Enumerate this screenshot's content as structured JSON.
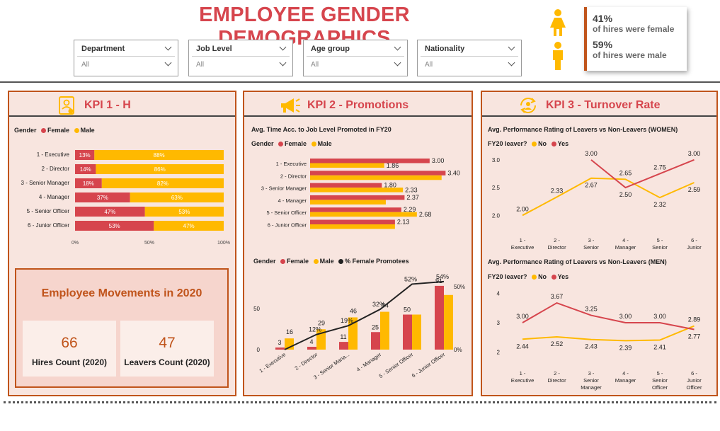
{
  "header": {
    "title": "EMPLOYEE GENDER DEMOGRAPHICS"
  },
  "filters": [
    {
      "label": "Department",
      "value": "All"
    },
    {
      "label": "Job Level",
      "value": "All"
    },
    {
      "label": "Age group",
      "value": "All"
    },
    {
      "label": "Nationality",
      "value": "All"
    }
  ],
  "hires": {
    "female_pct": "41%",
    "female_text": "of hires were female",
    "male_pct": "59%",
    "male_text": "of hires were male"
  },
  "colors": {
    "female": "#d6454d",
    "male": "#ffb900",
    "accent": "#c0541b",
    "panel_bg": "#f8e5df"
  },
  "kpi1": {
    "title": "KPI 1 - H",
    "legend": {
      "title": "Gender",
      "female": "Female",
      "male": "Male"
    },
    "x_ticks": [
      "0%",
      "50%",
      "100%"
    ]
  },
  "movements": {
    "title": "Employee Movements in 2020",
    "hires_value": "66",
    "hires_label": "Hires Count (2020)",
    "leavers_value": "47",
    "leavers_label": "Leavers Count (2020)"
  },
  "kpi2": {
    "title": "KPI 2 - Promotions",
    "chart1_title": "Avg. Time Acc. to Job Level Promoted in FY20",
    "legend1": {
      "title": "Gender",
      "female": "Female",
      "male": "Male"
    },
    "legend2": {
      "title": "Gender",
      "female": "Female",
      "male": "Male",
      "line": "% Female Promotees"
    },
    "chart2_left_ticks": [
      "0",
      "50"
    ],
    "chart2_right_ticks": [
      "0%",
      "50%"
    ]
  },
  "kpi3": {
    "title": "KPI 3 - Turnover Rate",
    "chart1_title": "Avg. Performance Rating of Leavers vs Non-Leavers (WOMEN)",
    "chart2_title": "Avg. Performance Rating of Leavers vs Non-Leavers (MEN)",
    "legend": {
      "title": "FY20 leaver?",
      "no": "No",
      "yes": "Yes"
    }
  },
  "chart_data": [
    {
      "type": "bar",
      "stacked": "100%",
      "orientation": "horizontal",
      "categories": [
        "1 - Executive",
        "2 - Director",
        "3 - Senior Manager",
        "4 - Manager",
        "5 - Senior Officer",
        "6 - Junior Officer"
      ],
      "series": [
        {
          "name": "Female",
          "values": [
            13,
            14,
            18,
            37,
            47,
            53
          ],
          "labels": [
            "13%",
            "14%",
            "18%",
            "37%",
            "47%",
            "53%"
          ]
        },
        {
          "name": "Male",
          "values": [
            88,
            86,
            82,
            63,
            53,
            47
          ],
          "labels": [
            "88%",
            "86%",
            "82%",
            "63%",
            "53%",
            "47%"
          ]
        }
      ],
      "xlim": [
        0,
        100
      ]
    },
    {
      "type": "bar",
      "orientation": "horizontal",
      "title": "Avg. Time Acc. to Job Level Promoted in FY20",
      "categories": [
        "1 - Executive",
        "2 - Director",
        "3 - Senior Manager",
        "4 - Manager",
        "5 - Senior Officer",
        "6 - Junior Officer"
      ],
      "series": [
        {
          "name": "Female",
          "values": [
            3.0,
            3.4,
            1.8,
            2.37,
            2.29,
            2.13
          ],
          "labels": [
            "3.00",
            "3.40",
            "1.80",
            "2.37",
            "2.29",
            "2.13"
          ]
        },
        {
          "name": "Male",
          "values": [
            1.86,
            3.3,
            2.33,
            1.9,
            2.68,
            2.13
          ],
          "labels": [
            "1.86",
            "",
            "2.33",
            "",
            "2.68",
            ""
          ]
        }
      ],
      "xlim": [
        0,
        3.5
      ]
    },
    {
      "type": "bar",
      "combo": "line",
      "categories": [
        "1 - Executive",
        "2 - Director",
        "3 - Senior Mana...",
        "4 - Manager",
        "5 - Senior Officer",
        "6 - Junior Officer"
      ],
      "series": [
        {
          "name": "Female",
          "values": [
            3,
            4,
            11,
            25,
            50,
            91
          ],
          "labels": [
            "3",
            "4",
            "11",
            "25",
            "50",
            "91"
          ]
        },
        {
          "name": "Male",
          "values": [
            16,
            29,
            46,
            54,
            50,
            78
          ],
          "labels": [
            "16",
            "29",
            "46",
            "54",
            "",
            ""
          ]
        },
        {
          "name": "% Female Promotees",
          "axis": "right",
          "values": [
            0,
            12,
            19,
            32,
            52,
            54
          ],
          "labels": [
            "",
            "12%",
            "19%",
            "32%",
            "52%",
            "54%"
          ]
        }
      ],
      "ylim": [
        0,
        100
      ],
      "y2lim": [
        0,
        100
      ]
    },
    {
      "type": "line",
      "title": "Avg. Performance Rating of Leavers vs Non-Leavers (WOMEN)",
      "categories": [
        "1 - Executive",
        "2 - Director",
        "3 - Senior Manager",
        "4 - Manager",
        "5 - Senior Officer",
        "6 - Junior Officer"
      ],
      "series": [
        {
          "name": "No",
          "values": [
            2.0,
            2.33,
            2.67,
            2.65,
            2.32,
            2.59
          ],
          "labels": [
            "2.00",
            "2.33",
            "2.67",
            "2.65",
            "2.32",
            "2.59"
          ]
        },
        {
          "name": "Yes",
          "values": [
            null,
            null,
            3.0,
            2.5,
            2.75,
            3.0
          ],
          "labels": [
            "",
            "",
            "3.00",
            "2.50",
            "2.75",
            "3.00"
          ]
        }
      ],
      "ylim": [
        1.8,
        3.1
      ],
      "y_ticks": [
        "2.0",
        "2.5",
        "3.0"
      ]
    },
    {
      "type": "line",
      "title": "Avg. Performance Rating of Leavers vs Non-Leavers (MEN)",
      "categories": [
        "1 - Executive",
        "2 - Director",
        "3 - Senior Manager",
        "4 - Manager",
        "5 - Senior Officer",
        "6 - Junior Officer"
      ],
      "series": [
        {
          "name": "No",
          "values": [
            2.44,
            2.52,
            2.43,
            2.39,
            2.41,
            2.89
          ],
          "labels": [
            "2.44",
            "2.52",
            "2.43",
            "2.39",
            "2.41",
            "2.89"
          ]
        },
        {
          "name": "Yes",
          "values": [
            3.0,
            3.67,
            3.25,
            3.0,
            3.0,
            2.77
          ],
          "labels": [
            "3.00",
            "3.67",
            "3.25",
            "3.00",
            "3.00",
            "2.77"
          ]
        }
      ],
      "ylim": [
        1.8,
        4.2
      ],
      "y_ticks": [
        "2",
        "3",
        "4"
      ]
    }
  ]
}
